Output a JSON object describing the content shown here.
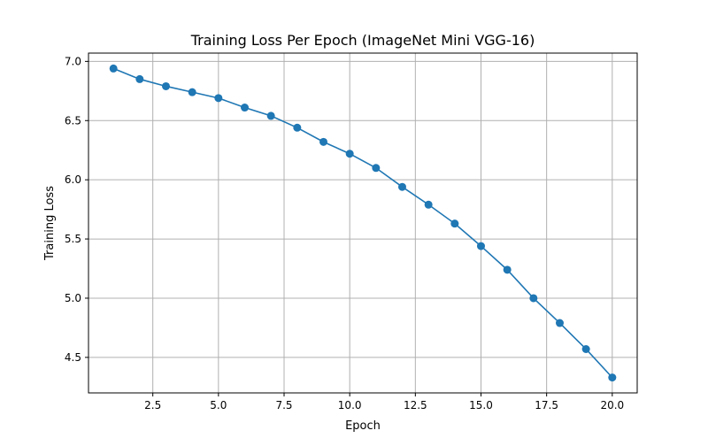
{
  "chart_data": {
    "type": "line",
    "title": "Training Loss Per Epoch (ImageNet Mini VGG-16)",
    "xlabel": "Epoch",
    "ylabel": "Training Loss",
    "xlim": [
      0.05,
      20.95
    ],
    "ylim": [
      4.2,
      7.07
    ],
    "xticks": [
      2.5,
      5.0,
      7.5,
      10.0,
      12.5,
      15.0,
      17.5,
      20.0
    ],
    "xtick_labels": [
      "2.5",
      "5.0",
      "7.5",
      "10.0",
      "12.5",
      "15.0",
      "17.5",
      "20.0"
    ],
    "yticks": [
      4.5,
      5.0,
      5.5,
      6.0,
      6.5,
      7.0
    ],
    "ytick_labels": [
      "4.5",
      "5.0",
      "5.5",
      "6.0",
      "6.5",
      "7.0"
    ],
    "grid": true,
    "line_color": "#1f77b4",
    "marker": "circle",
    "x": [
      1,
      2,
      3,
      4,
      5,
      6,
      7,
      8,
      9,
      10,
      11,
      12,
      13,
      14,
      15,
      16,
      17,
      18,
      19,
      20
    ],
    "values": [
      6.94,
      6.85,
      6.79,
      6.74,
      6.69,
      6.61,
      6.54,
      6.44,
      6.32,
      6.22,
      6.1,
      5.94,
      5.79,
      5.63,
      5.44,
      5.24,
      5.0,
      4.79,
      4.57,
      4.33
    ]
  }
}
